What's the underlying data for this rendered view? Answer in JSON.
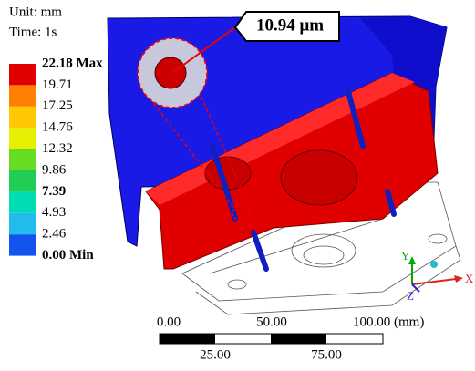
{
  "header": {
    "unit": "Unit: mm",
    "time": "Time: 1s"
  },
  "legend": [
    {
      "label": "22.18 Max",
      "color": "#e00000"
    },
    {
      "label": "19.71",
      "color": "#ff7f00"
    },
    {
      "label": "17.25",
      "color": "#ffc800"
    },
    {
      "label": "14.76",
      "color": "#e6f000"
    },
    {
      "label": "12.32",
      "color": "#66dd22"
    },
    {
      "label": "9.86",
      "color": "#22cc55"
    },
    {
      "label": "7.39",
      "color": "#00dcb4"
    },
    {
      "label": "4.93",
      "color": "#22bbee"
    },
    {
      "label": "2.46",
      "color": "#1155ee"
    },
    {
      "label": "0.00 Min",
      "color": null
    }
  ],
  "callout": "10.94 μm",
  "scale_bar": {
    "top_labels": [
      "0.00",
      "50.00",
      "100.00 (mm)"
    ],
    "bottom_labels": [
      "25.00",
      "75.00"
    ]
  },
  "triad": {
    "y": "Y",
    "x": "X",
    "z": "Z"
  }
}
